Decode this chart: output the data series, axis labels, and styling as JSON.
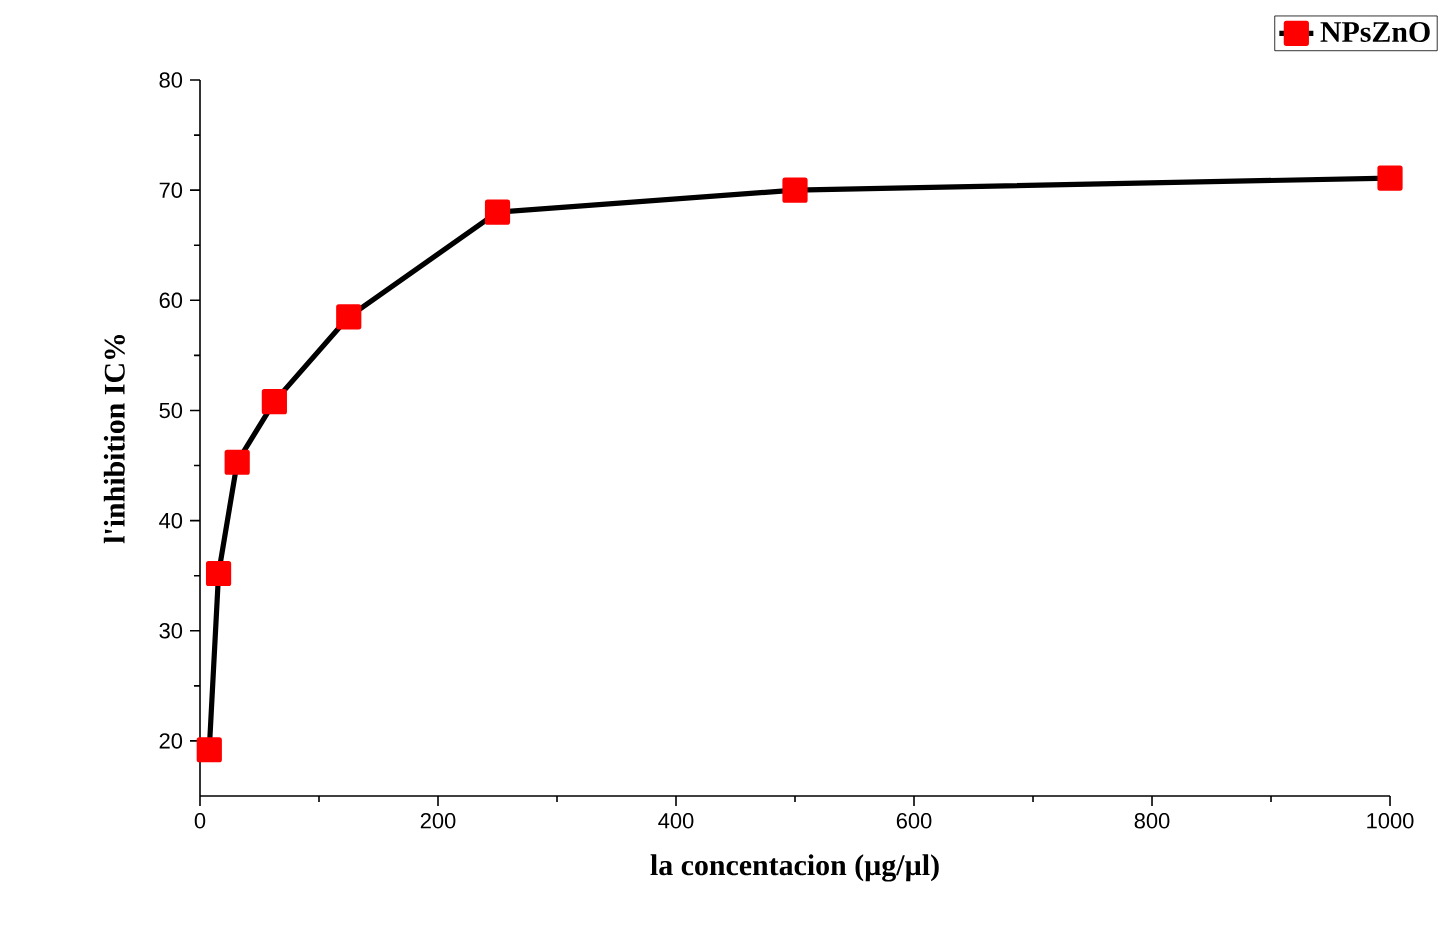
{
  "chart_data": {
    "type": "line",
    "xlabel": "la concentacion (µg/µl)",
    "ylabel": "l'inhibition IC%",
    "x": [
      7.8,
      15.6,
      31.25,
      62.5,
      125,
      250,
      500,
      1000
    ],
    "series": [
      {
        "name": "NPsZnO",
        "color": "#ff0000",
        "values": [
          19.2,
          35.2,
          45.3,
          50.8,
          58.5,
          68.0,
          70.0,
          71.1
        ]
      }
    ],
    "xlim": [
      0,
      1000
    ],
    "ylim": [
      15,
      80
    ],
    "xticks": [
      0,
      200,
      400,
      600,
      800,
      1000
    ],
    "yticks": [
      20,
      30,
      40,
      50,
      60,
      70,
      80
    ],
    "grid": false,
    "legend": "top right",
    "marker": "square",
    "line_style": "solid"
  }
}
